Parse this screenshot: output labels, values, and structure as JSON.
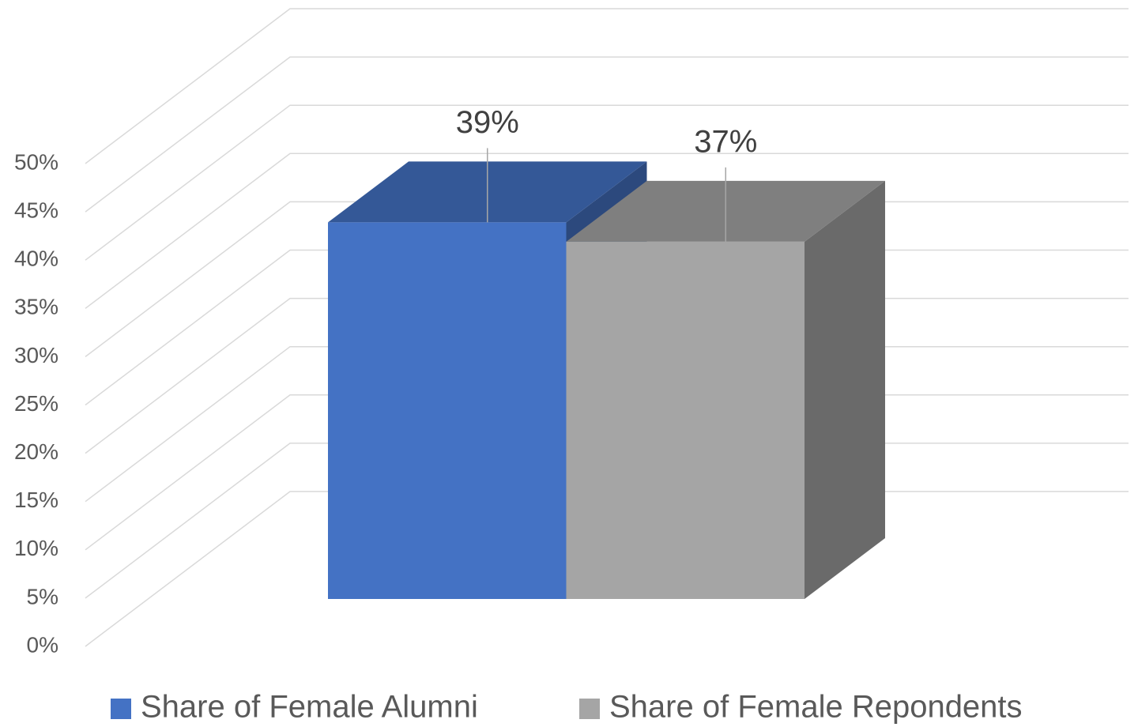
{
  "chart_data": {
    "type": "bar3d",
    "categories": [
      null
    ],
    "series": [
      {
        "name": "Share of Female Alumni",
        "color": "#4472c4",
        "values": [
          39
        ],
        "value_labels": [
          "39%"
        ]
      },
      {
        "name": "Share of Female Repondents",
        "color": "#a5a5a5",
        "values": [
          37
        ],
        "value_labels": [
          "37%"
        ]
      }
    ],
    "ylim": [
      0,
      50
    ],
    "yticks": [
      {
        "value": 0,
        "label": "0%"
      },
      {
        "value": 5,
        "label": "5%"
      },
      {
        "value": 10,
        "label": "10%"
      },
      {
        "value": 15,
        "label": "15%"
      },
      {
        "value": 20,
        "label": "20%"
      },
      {
        "value": 25,
        "label": "25%"
      },
      {
        "value": 30,
        "label": "30%"
      },
      {
        "value": 35,
        "label": "35%"
      },
      {
        "value": 40,
        "label": "40%"
      },
      {
        "value": 45,
        "label": "45%"
      },
      {
        "value": 50,
        "label": "50%"
      }
    ],
    "grid": true,
    "legend": "bottom"
  }
}
